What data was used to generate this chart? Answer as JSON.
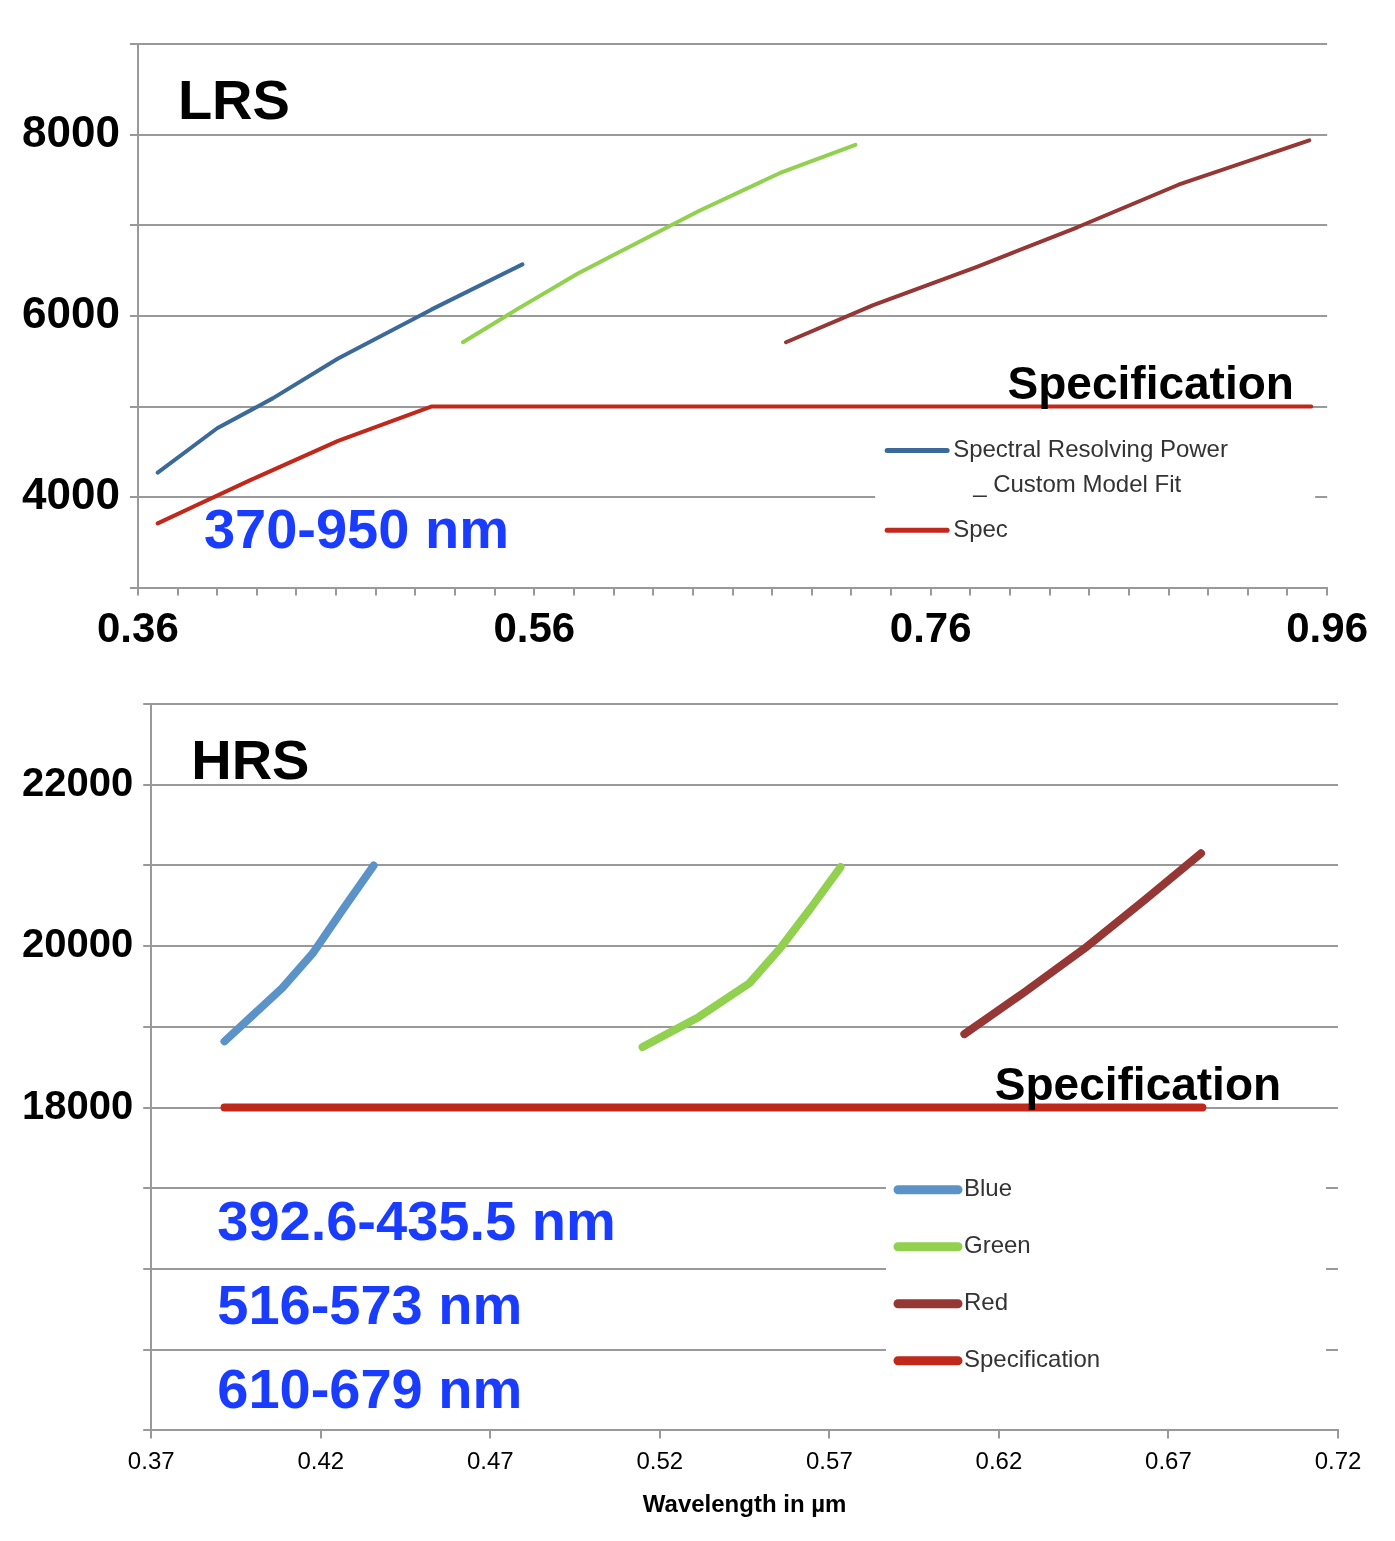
{
  "chart_data": [
    {
      "type": "line",
      "title": "LRS",
      "xlim": [
        0.36,
        0.96
      ],
      "xticks": [
        0.36,
        {
          "value": 0.38,
          "label": null
        },
        {
          "value": 0.4,
          "label": null
        },
        {
          "value": 0.42,
          "label": null
        },
        {
          "value": 0.44,
          "label": null
        },
        {
          "value": 0.46,
          "label": null
        },
        {
          "value": 0.48,
          "label": null
        },
        {
          "value": 0.5,
          "label": null
        },
        {
          "value": 0.52,
          "label": null
        },
        {
          "value": 0.54,
          "label": null
        },
        0.56,
        {
          "value": 0.58,
          "label": null
        },
        {
          "value": 0.6,
          "label": null
        },
        {
          "value": 0.62,
          "label": null
        },
        {
          "value": 0.64,
          "label": null
        },
        {
          "value": 0.66,
          "label": null
        },
        {
          "value": 0.68,
          "label": null
        },
        {
          "value": 0.7,
          "label": null
        },
        {
          "value": 0.72,
          "label": null
        },
        {
          "value": 0.74,
          "label": null
        },
        0.76,
        {
          "value": 0.78,
          "label": null
        },
        {
          "value": 0.8,
          "label": null
        },
        {
          "value": 0.82,
          "label": null
        },
        {
          "value": 0.84,
          "label": null
        },
        {
          "value": 0.86,
          "label": null
        },
        {
          "value": 0.88,
          "label": null
        },
        {
          "value": 0.9,
          "label": null
        },
        {
          "value": 0.92,
          "label": null
        },
        {
          "value": 0.94,
          "label": null
        },
        0.96
      ],
      "ylim": [
        3000,
        9000
      ],
      "yticks": [
        {
          "value": 3000,
          "label": null
        },
        4000,
        {
          "value": 5000,
          "label": null
        },
        6000,
        {
          "value": 7000,
          "label": null
        },
        8000,
        {
          "value": 9000,
          "label": null
        }
      ],
      "grid": "y",
      "legend": "bottom right",
      "marker": "none",
      "annotations": [
        {
          "text": "Specification",
          "x": 0.871,
          "y": 5000
        },
        "370-950 nm"
      ],
      "series": [
        {
          "name": "Spectral Resolving Power _ Custom Model Fit",
          "color": "#3b6a9a",
          "x": [
            0.37,
            0.4,
            0.428,
            0.461,
            0.508,
            0.554
          ],
          "values": [
            4270,
            4760,
            5090,
            5530,
            6070,
            6570
          ]
        },
        {
          "color": "#92d050",
          "x": [
            0.524,
            0.551,
            0.582,
            0.612,
            0.643,
            0.684,
            0.722
          ],
          "values": [
            5710,
            6070,
            6470,
            6810,
            7160,
            7580,
            7890
          ]
        },
        {
          "color": "#953735",
          "x": [
            0.687,
            0.731,
            0.783,
            0.834,
            0.885,
            0.951
          ],
          "values": [
            5710,
            6120,
            6540,
            6980,
            7450,
            7940
          ]
        },
        {
          "name": "Spec",
          "color": "#c0281c",
          "x": [
            0.37,
            0.417,
            0.461,
            0.508,
            0.952
          ],
          "values": [
            3710,
            4190,
            4620,
            5000,
            5000
          ]
        }
      ]
    },
    {
      "type": "line",
      "title": "HRS",
      "xlabel": "Wavelength in µm",
      "xlim": [
        0.37,
        0.72
      ],
      "xticks": [
        0.37,
        0.42,
        0.47,
        0.52,
        0.57,
        0.62,
        0.67,
        0.72
      ],
      "ylim": [
        14000,
        23000
      ],
      "yticks": [
        {
          "value": 14000,
          "label": null
        },
        {
          "value": 15000,
          "label": null
        },
        {
          "value": 16000,
          "label": null
        },
        {
          "value": 17000,
          "label": null
        },
        18000,
        {
          "value": 19000,
          "label": null
        },
        20000,
        {
          "value": 21000,
          "label": null
        },
        22000,
        {
          "value": 23000,
          "label": null
        }
      ],
      "grid": "y",
      "legend": "bottom right",
      "marker": "none",
      "annotations": [
        {
          "text": "Specification",
          "x": 0.661,
          "y": 18000
        },
        "392.6-435.5 nm",
        "516-573 nm",
        "610-679 nm"
      ],
      "series": [
        {
          "name": "Blue",
          "color": "#5b93c8",
          "x": [
            0.3916,
            0.4086,
            0.4176,
            0.4266,
            0.4356
          ],
          "values": [
            18820,
            19480,
            19910,
            20460,
            21000
          ]
        },
        {
          "name": "Green",
          "color": "#92d050",
          "x": [
            0.5149,
            0.5314,
            0.5464,
            0.5554,
            0.5643,
            0.5733
          ],
          "values": [
            18750,
            19120,
            19540,
            19970,
            20460,
            20980
          ]
        },
        {
          "name": "Red",
          "color": "#953735",
          "x": [
            0.6098,
            0.6272,
            0.6452,
            0.6632,
            0.6796
          ],
          "values": [
            18910,
            19420,
            19970,
            20580,
            21150
          ]
        },
        {
          "name": "Specification",
          "color": "#c0281c",
          "x": [
            0.3916,
            0.68
          ],
          "values": [
            18000,
            18000
          ]
        }
      ]
    }
  ]
}
